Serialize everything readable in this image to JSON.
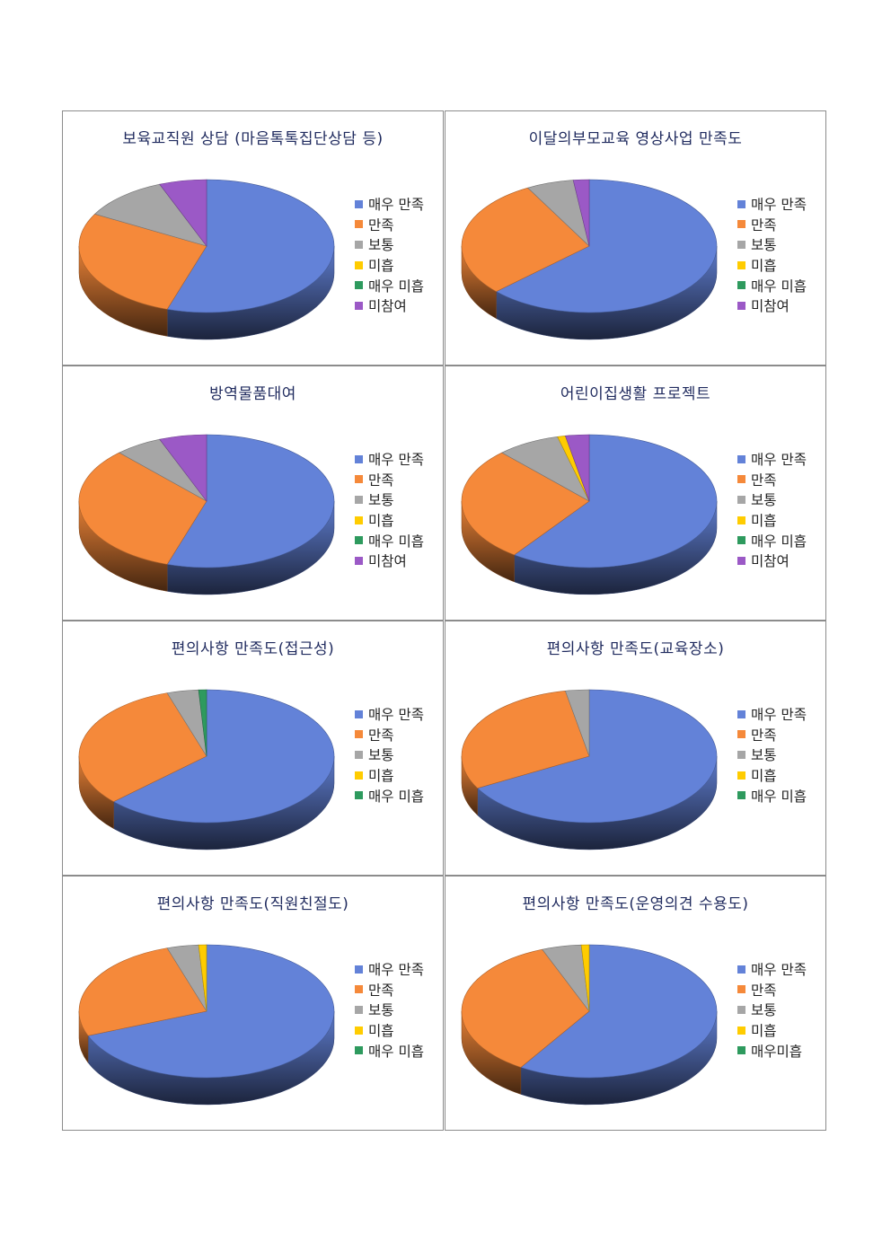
{
  "colors": {
    "매우 만족": "#6382d8",
    "만족": "#f5893a",
    "보통": "#a6a6a6",
    "미흡": "#ffcc00",
    "매우 미흡": "#2e9a5e",
    "매우미흡": "#2e9a5e",
    "미참여": "#9b59c6"
  },
  "chart_data": [
    {
      "type": "pie",
      "title": "보육교직원 상담 (마음톡톡집단상담 등)",
      "labels": [
        "매우 만족",
        "만족",
        "보통",
        "미흡",
        "매우 미흡",
        "미참여"
      ],
      "values": [
        55,
        28,
        11,
        0,
        0,
        6
      ]
    },
    {
      "type": "pie",
      "title": "이달의부모교육 영상사업 만족도",
      "labels": [
        "매우 만족",
        "만족",
        "보통",
        "미흡",
        "매우 미흡",
        "미참여"
      ],
      "values": [
        63,
        29,
        6,
        0,
        0,
        2
      ]
    },
    {
      "type": "pie",
      "title": "방역물품대여",
      "labels": [
        "매우 만족",
        "만족",
        "보통",
        "미흡",
        "매우 미흡",
        "미참여"
      ],
      "values": [
        55,
        33,
        6,
        0,
        0,
        6
      ]
    },
    {
      "type": "pie",
      "title": "어린이집생활 프로젝트",
      "labels": [
        "매우 만족",
        "만족",
        "보통",
        "미흡",
        "매우 미흡",
        "미참여"
      ],
      "values": [
        60,
        28,
        8,
        1,
        0,
        3
      ]
    },
    {
      "type": "pie",
      "title": "편의사항 만족도(접근성)",
      "labels": [
        "매우 만족",
        "만족",
        "보통",
        "미흡",
        "매우 미흡"
      ],
      "values": [
        63,
        32,
        4,
        0,
        1
      ]
    },
    {
      "type": "pie",
      "title": "편의사항 만족도(교육장소)",
      "labels": [
        "매우 만족",
        "만족",
        "보통",
        "미흡",
        "매우 미흡"
      ],
      "values": [
        67,
        30,
        3,
        0,
        0
      ]
    },
    {
      "type": "pie",
      "title": "편의사항 만족도(직원친절도)",
      "labels": [
        "매우 만족",
        "만족",
        "보통",
        "미흡",
        "매우 미흡"
      ],
      "values": [
        69,
        26,
        4,
        1,
        0
      ]
    },
    {
      "type": "pie",
      "title": "편의사항 만족도(운영의견 수용도)",
      "labels": [
        "매우 만족",
        "만족",
        "보통",
        "미흡",
        "매우미흡"
      ],
      "values": [
        59,
        35,
        5,
        1,
        0
      ]
    }
  ]
}
